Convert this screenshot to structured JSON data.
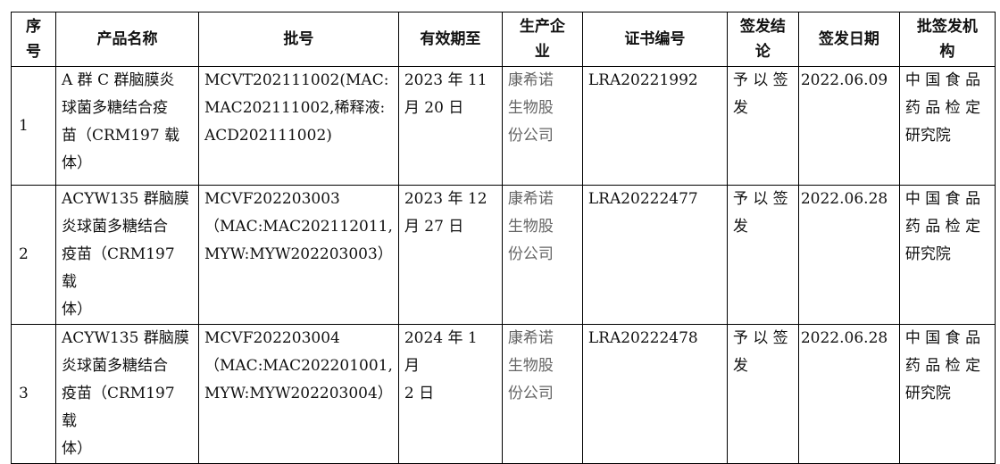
{
  "headers": [
    "序\n号",
    "产品名称",
    "批号",
    "有效期至",
    "生产企\n业",
    "证书编号",
    "签发结\n论",
    "签发日期",
    "批签发机\n构"
  ],
  "rows": [
    {
      "no": "1",
      "product": "A 群 C 群脑膜炎\n球菌多糖结合疫\n苗（CRM197 载\n体）",
      "batch": "MCVT202111002(MAC:\nMAC202111002,稀释液:\nACD202111002)",
      "expiry": "2023 年 11\n月 20 日",
      "company": "康希诺\n生物股\n份公司",
      "cert": "LRA20221992",
      "conclusion": "予 以 签\n发",
      "date": "2022.06.09",
      "agency": "中 国 食 品\n药 品 检 定\n研究院"
    },
    {
      "no": "2",
      "product": "ACYW135 群脑膜\n炎球菌多糖结合\n疫苗（CRM197 载\n体）",
      "batch": "MCVF202203003\n（MAC:MAC202112011,\nMYW:MYW202203003）",
      "expiry": "2023 年 12\n月 27 日",
      "company": "康希诺\n生物股\n份公司",
      "cert": "LRA20222477",
      "conclusion": "予 以 签\n发",
      "date": "2022.06.28",
      "agency": "中 国 食 品\n药 品 检 定\n研究院"
    },
    {
      "no": "3",
      "product": "ACYW135 群脑膜\n炎球菌多糖结合\n疫苗（CRM197 载\n体）",
      "batch": "MCVF202203004\n（MAC:MAC202201001,\nMYW:MYW202203004）",
      "expiry": "2024 年 1 月\n2 日",
      "company": "康希诺\n生物股\n份公司",
      "cert": "LRA20222478",
      "conclusion": "予 以 签\n发",
      "date": "2022.06.28",
      "agency": "中 国 食 品\n药 品 检 定\n研究院"
    }
  ]
}
